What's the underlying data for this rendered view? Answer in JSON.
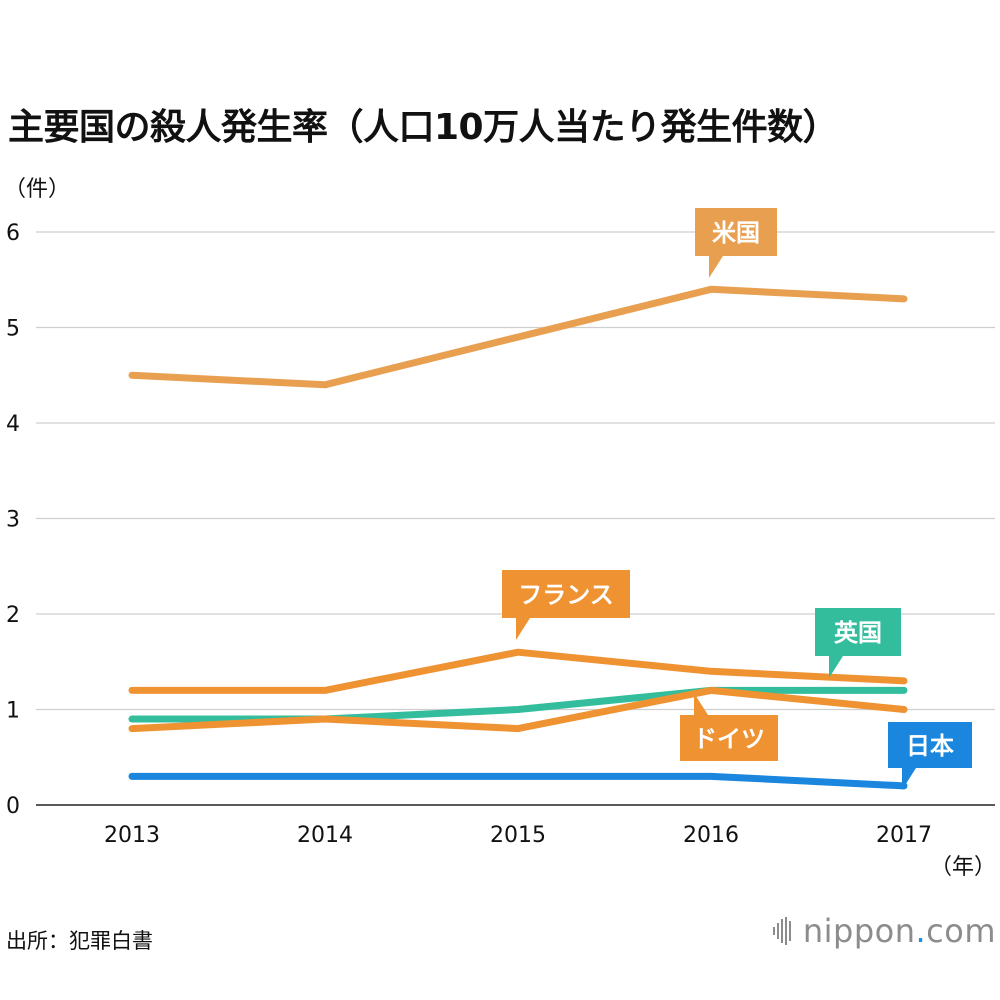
{
  "chart_data": {
    "type": "line",
    "title": "主要国の殺人発生率（人口10万人当たり発生件数）",
    "y_unit": "（件）",
    "x_unit": "（年）",
    "x": [
      "2013",
      "2014",
      "2015",
      "2016",
      "2017"
    ],
    "ylim": [
      0,
      6
    ],
    "yticks": [
      "0",
      "1",
      "2",
      "3",
      "4",
      "5",
      "6"
    ],
    "grid": true,
    "series": [
      {
        "name": "米国",
        "color": "#e8a050",
        "values": [
          4.5,
          4.4,
          4.9,
          5.4,
          5.3
        ]
      },
      {
        "name": "フランス",
        "color": "#ef9232",
        "values": [
          1.2,
          1.2,
          1.6,
          1.4,
          1.3
        ]
      },
      {
        "name": "英国",
        "color": "#34bd9c",
        "values": [
          0.9,
          0.9,
          1.0,
          1.2,
          1.2
        ]
      },
      {
        "name": "ドイツ",
        "color": "#ef9232",
        "values": [
          0.8,
          0.9,
          0.8,
          1.2,
          1.0
        ]
      },
      {
        "name": "日本",
        "color": "#1a86dd",
        "values": [
          0.3,
          0.3,
          0.3,
          0.3,
          0.2
        ]
      }
    ]
  },
  "footer": {
    "source": "出所：犯罪白書",
    "logo_main": "nippon",
    "logo_dot": ".",
    "logo_tld": "com"
  }
}
